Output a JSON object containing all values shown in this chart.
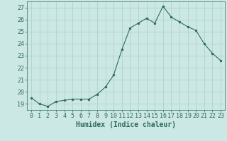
{
  "x": [
    0,
    1,
    2,
    3,
    4,
    5,
    6,
    7,
    8,
    9,
    10,
    11,
    12,
    13,
    14,
    15,
    16,
    17,
    18,
    19,
    20,
    21,
    22,
    23
  ],
  "y": [
    19.5,
    19.0,
    18.8,
    19.2,
    19.3,
    19.4,
    19.4,
    19.4,
    19.8,
    20.4,
    21.4,
    23.5,
    25.3,
    25.7,
    26.1,
    25.7,
    27.1,
    26.2,
    25.8,
    25.4,
    25.1,
    24.0,
    23.2,
    22.6
  ],
  "line_color": "#2e6b5e",
  "marker": "o",
  "marker_size": 2,
  "bg_color": "#cce8e4",
  "grid_color": "#aacccc",
  "xlabel": "Humidex (Indice chaleur)",
  "xlim": [
    -0.5,
    23.5
  ],
  "ylim": [
    18.5,
    27.5
  ],
  "yticks": [
    19,
    20,
    21,
    22,
    23,
    24,
    25,
    26,
    27
  ],
  "xticks": [
    0,
    1,
    2,
    3,
    4,
    5,
    6,
    7,
    8,
    9,
    10,
    11,
    12,
    13,
    14,
    15,
    16,
    17,
    18,
    19,
    20,
    21,
    22,
    23
  ],
  "tick_fontsize": 6,
  "xlabel_fontsize": 7,
  "label_color": "#2e6b5e"
}
